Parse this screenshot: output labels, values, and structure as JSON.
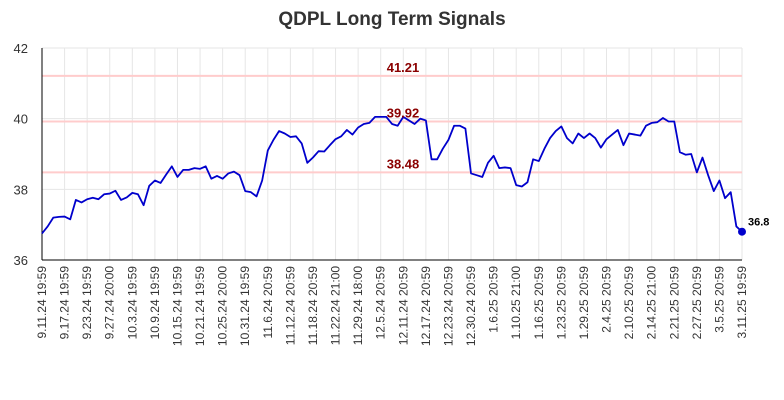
{
  "chart_data": {
    "type": "line",
    "title": "QDPL Long Term Signals",
    "xlabel": "",
    "ylabel": "",
    "ylim": [
      36,
      42
    ],
    "yticks": [
      "36",
      "38",
      "40",
      "42"
    ],
    "grid": true,
    "legend": "none",
    "x_tick_labels": [
      "9.11.24 19:59",
      "9.17.24 19:59",
      "9.23.24 19:59",
      "9.27.24 20:00",
      "10.3.24 19:59",
      "10.9.24 19:59",
      "10.15.24 19:59",
      "10.21.24 19:59",
      "10.25.24 20:00",
      "10.31.24 19:59",
      "11.6.24 20:59",
      "11.12.24 20:59",
      "11.18.24 20:59",
      "11.22.24 21:00",
      "11.29.24 18:00",
      "12.5.24 20:59",
      "12.11.24 20:59",
      "12.17.24 20:59",
      "12.23.24 20:59",
      "12.30.24 20:59",
      "1.6.25 20:59",
      "1.10.25 21:00",
      "1.16.25 20:59",
      "1.23.25 20:59",
      "1.29.25 20:59",
      "2.4.25 20:59",
      "2.10.25 20:59",
      "2.14.25 21:00",
      "2.21.25 20:59",
      "2.27.25 20:59",
      "3.5.25 20:59",
      "3.11.25 19:59"
    ],
    "series": [
      {
        "color": "#0000cc",
        "values": [
          36.75,
          36.95,
          37.2,
          37.22,
          37.23,
          37.15,
          37.7,
          37.63,
          37.72,
          37.76,
          37.72,
          37.86,
          37.88,
          37.96,
          37.7,
          37.77,
          37.9,
          37.86,
          37.55,
          38.1,
          38.25,
          38.18,
          38.42,
          38.65,
          38.35,
          38.55,
          38.55,
          38.6,
          38.58,
          38.65,
          38.3,
          38.38,
          38.3,
          38.45,
          38.5,
          38.4,
          37.95,
          37.92,
          37.8,
          38.25,
          39.1,
          39.4,
          39.65,
          39.58,
          39.48,
          39.5,
          39.3,
          38.75,
          38.9,
          39.08,
          39.07,
          39.25,
          39.42,
          39.5,
          39.68,
          39.55,
          39.75,
          39.85,
          39.88,
          40.05,
          40.05,
          40.05,
          39.85,
          39.8,
          40.05,
          39.95,
          39.85,
          40.0,
          39.95,
          38.85,
          38.85,
          39.15,
          39.4,
          39.8,
          39.8,
          39.72,
          38.45,
          38.4,
          38.35,
          38.75,
          38.95,
          38.6,
          38.62,
          38.6,
          38.12,
          38.08,
          38.2,
          38.85,
          38.8,
          39.15,
          39.45,
          39.65,
          39.78,
          39.45,
          39.3,
          39.58,
          39.45,
          39.58,
          39.45,
          39.18,
          39.42,
          39.55,
          39.68,
          39.25,
          39.58,
          39.55,
          39.52,
          39.8,
          39.88,
          39.9,
          40.02,
          39.92,
          39.92,
          39.05,
          38.98,
          39.0,
          38.48,
          38.9,
          38.4,
          37.95,
          38.25,
          37.75,
          37.92,
          36.95,
          36.8
        ]
      }
    ],
    "levels": [
      {
        "value": 41.21,
        "label": "41.21"
      },
      {
        "value": 39.92,
        "label": "39.92"
      },
      {
        "value": 38.48,
        "label": "38.48"
      }
    ],
    "last_value_label": "36.8",
    "colors": {
      "line": "#0000cc",
      "level_line": "#ffcccc",
      "level_text": "#8b0000",
      "grid": "#e6e6e6",
      "axis": "#000000"
    }
  }
}
